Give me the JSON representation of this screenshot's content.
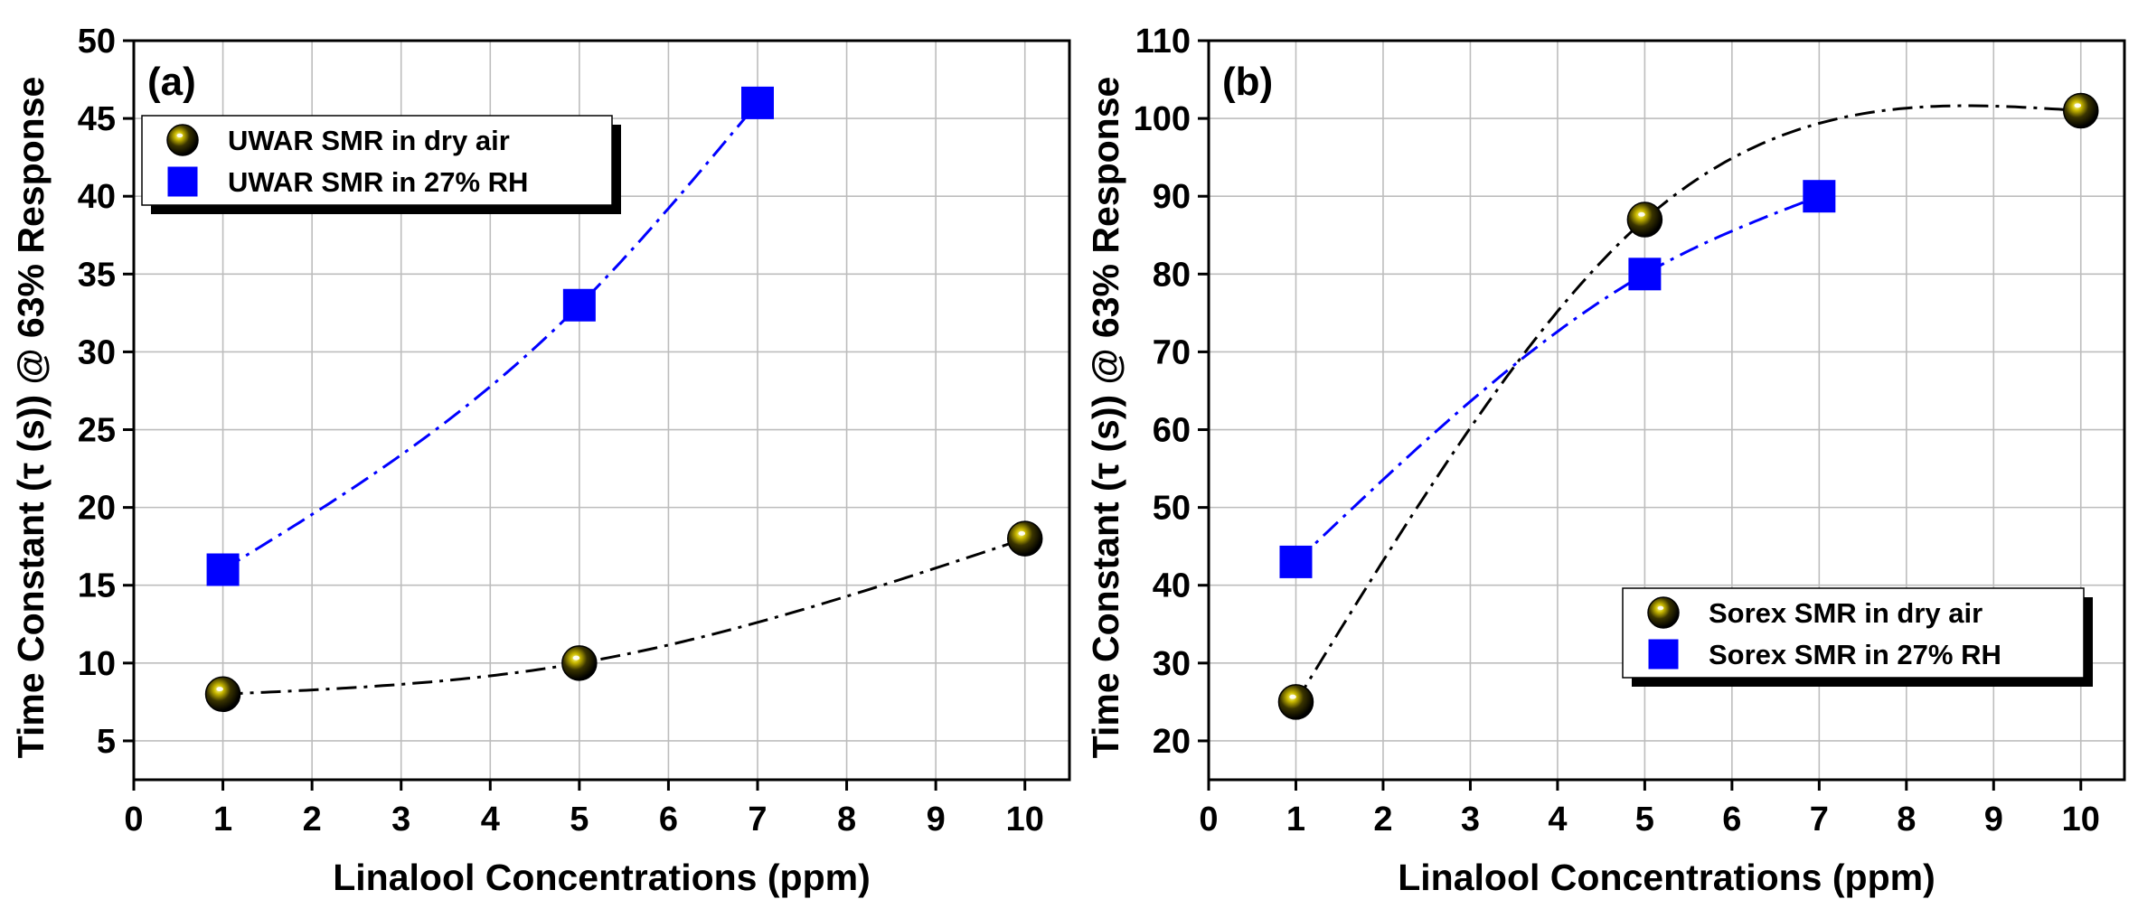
{
  "chart_data": [
    {
      "type": "scatter",
      "panel_label": "(a)",
      "xlabel": "Linalool Concentrations (ppm)",
      "ylabel": "Time Constant (τ (s)) @ 63% Response",
      "xlim": [
        0,
        10.5
      ],
      "ylim": [
        2.5,
        50
      ],
      "xticks": [
        0,
        1,
        2,
        3,
        4,
        5,
        6,
        7,
        8,
        9,
        10
      ],
      "yticks": [
        5,
        10,
        15,
        20,
        25,
        30,
        35,
        40,
        45,
        50
      ],
      "grid": true,
      "legend_position": "top-left",
      "series": [
        {
          "name": "UWAR SMR in dry air",
          "marker": "sphere",
          "color": "#111111",
          "line_color": "#000000",
          "x": [
            1,
            5,
            10
          ],
          "values": [
            8,
            10,
            18
          ]
        },
        {
          "name": "UWAR SMR in 27% RH",
          "marker": "square",
          "color": "#0000ff",
          "line_color": "#0000ff",
          "x": [
            1,
            5,
            7
          ],
          "values": [
            16,
            33,
            46
          ]
        }
      ]
    },
    {
      "type": "scatter",
      "panel_label": "(b)",
      "xlabel": "Linalool Concentrations (ppm)",
      "ylabel": "Time Constant (τ (s)) @ 63% Response",
      "xlim": [
        0,
        10.5
      ],
      "ylim": [
        15,
        110
      ],
      "xticks": [
        0,
        1,
        2,
        3,
        4,
        5,
        6,
        7,
        8,
        9,
        10
      ],
      "yticks": [
        20,
        30,
        40,
        50,
        60,
        70,
        80,
        90,
        100,
        110
      ],
      "grid": true,
      "legend_position": "bottom-right",
      "series": [
        {
          "name": "Sorex SMR in dry air",
          "marker": "sphere",
          "color": "#111111",
          "line_color": "#000000",
          "x": [
            1,
            5,
            10
          ],
          "values": [
            25,
            87,
            101
          ]
        },
        {
          "name": "Sorex SMR in 27% RH",
          "marker": "square",
          "color": "#0000ff",
          "line_color": "#0000ff",
          "x": [
            1,
            5,
            7
          ],
          "values": [
            43,
            80,
            90
          ]
        }
      ]
    }
  ]
}
